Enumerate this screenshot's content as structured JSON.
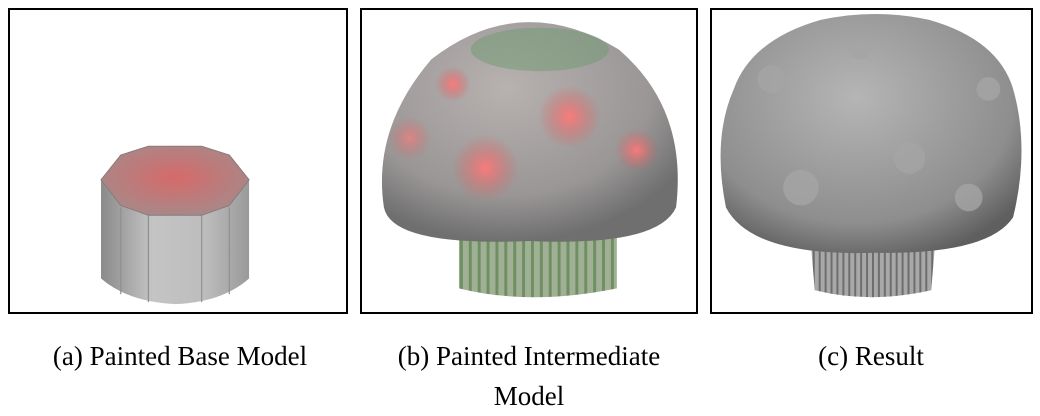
{
  "panels": [
    {
      "caption": "(a) Painted Base Model"
    },
    {
      "caption": "(b) Painted Intermediate Model"
    },
    {
      "caption": "(c) Result"
    }
  ]
}
